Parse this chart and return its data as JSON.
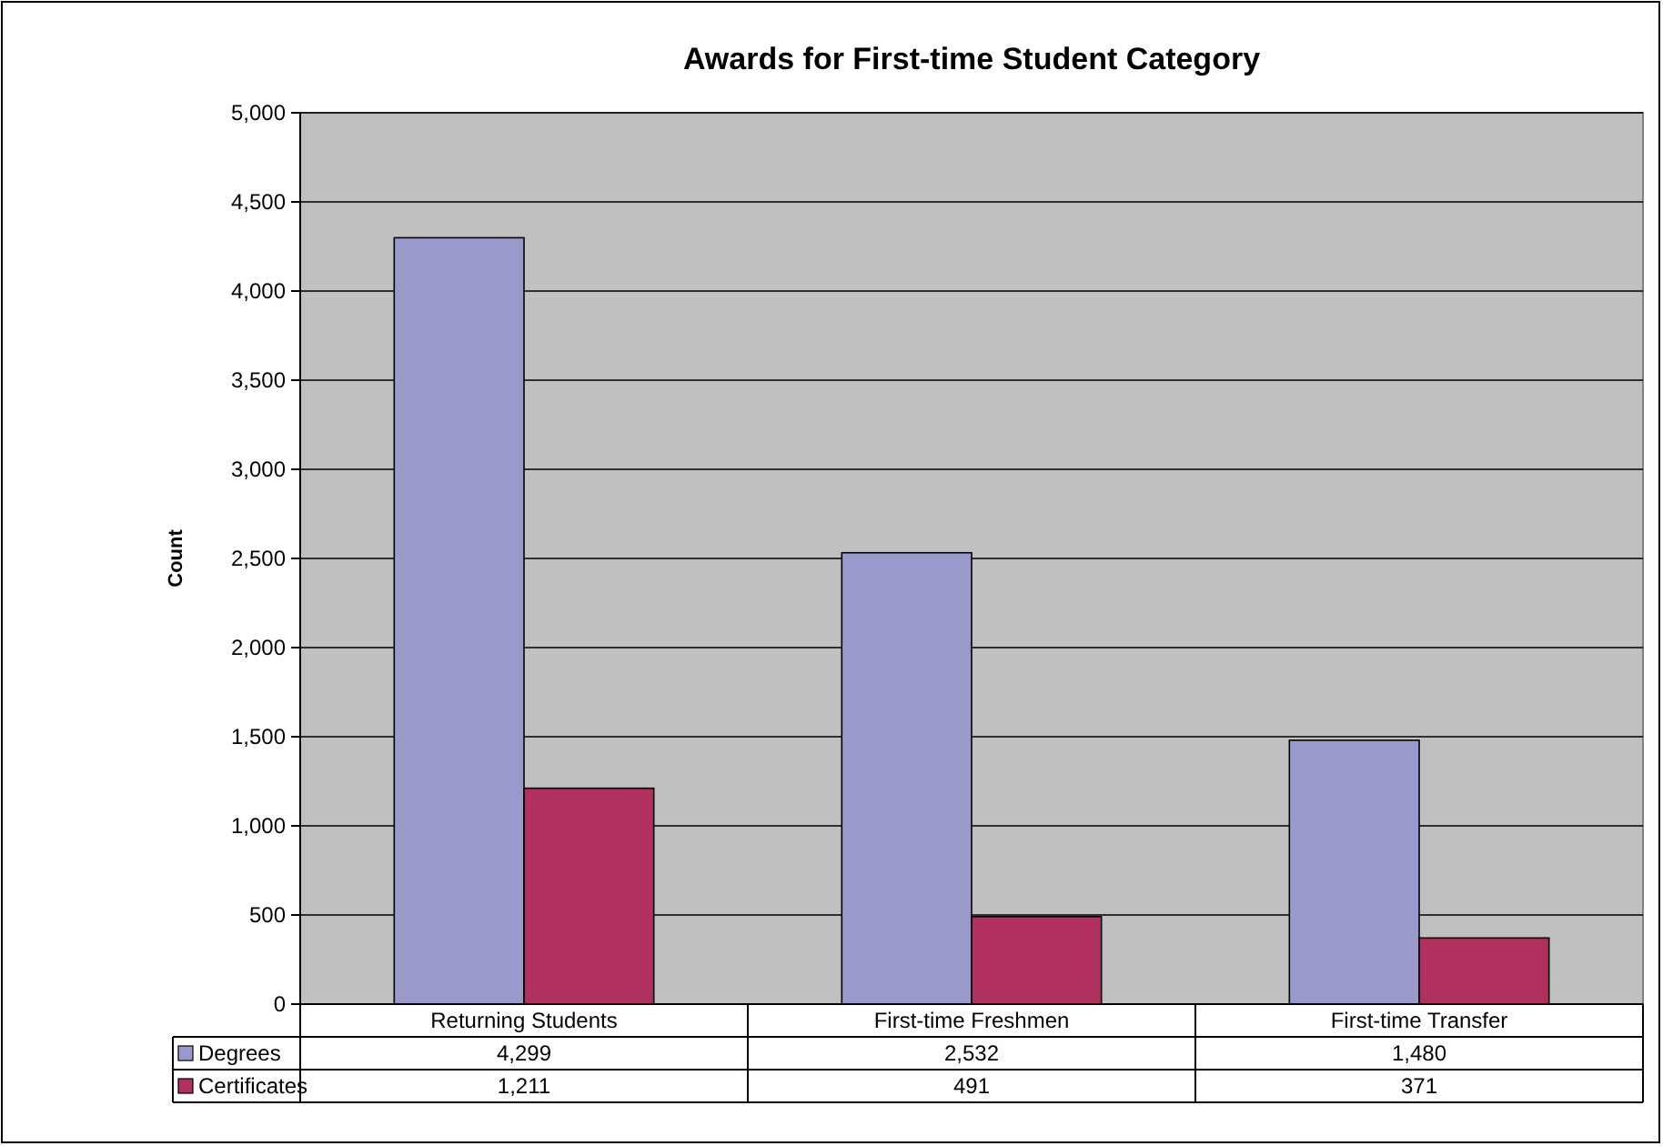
{
  "chart_data": {
    "type": "bar",
    "title": "Awards for First-time Student Category",
    "ylabel": "Count",
    "categories": [
      "Returning Students",
      "First-time Freshmen",
      "First-time Transfer"
    ],
    "series": [
      {
        "name": "Degrees",
        "color": "#9999cc",
        "values": [
          4299,
          2532,
          1480
        ],
        "value_labels": [
          "4,299",
          "2,532",
          "1,480"
        ]
      },
      {
        "name": "Certificates",
        "color": "#b03060",
        "values": [
          1211,
          491,
          371
        ],
        "value_labels": [
          "1,211",
          "491",
          "371"
        ]
      }
    ],
    "ylim": [
      0,
      5000
    ],
    "yticks": [
      {
        "value": 0,
        "label": "0"
      },
      {
        "value": 500,
        "label": "500"
      },
      {
        "value": 1000,
        "label": "1,000"
      },
      {
        "value": 1500,
        "label": "1,500"
      },
      {
        "value": 2000,
        "label": "2,000"
      },
      {
        "value": 2500,
        "label": "2,500"
      },
      {
        "value": 3000,
        "label": "3,000"
      },
      {
        "value": 3500,
        "label": "3,500"
      },
      {
        "value": 4000,
        "label": "4,000"
      },
      {
        "value": 4500,
        "label": "4,500"
      },
      {
        "value": 5000,
        "label": "5,000"
      }
    ],
    "grid": "y",
    "legend": "bottom"
  }
}
